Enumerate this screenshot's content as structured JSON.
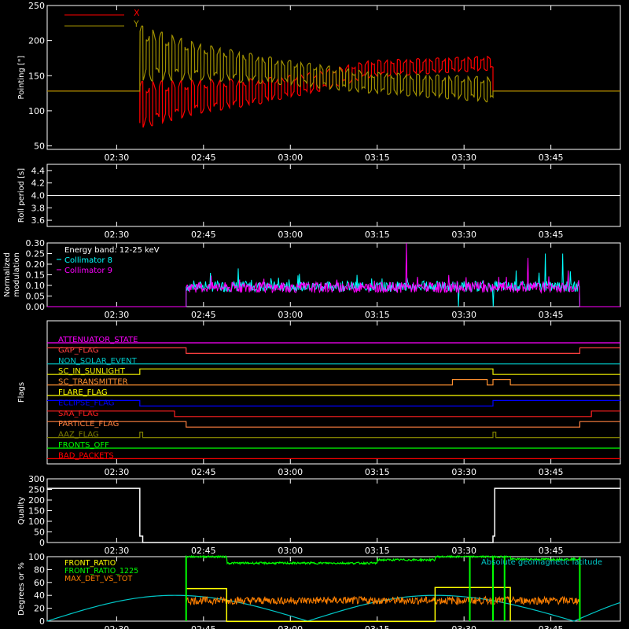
{
  "chart_data": [
    {
      "type": "line",
      "ylabel": "Pointing [\"]",
      "ylim": [
        45,
        250
      ],
      "yticks": [
        50,
        100,
        150,
        200,
        250
      ],
      "legend": "top-left",
      "series": [
        {
          "name": "X",
          "color": "#ff0000",
          "start": "02:34",
          "end": "03:35",
          "base": 128,
          "center": [
            [
              0,
              108
            ],
            [
              10,
              120
            ],
            [
              20,
              127
            ],
            [
              30,
              140
            ],
            [
              40,
              160
            ],
            [
              61,
              168
            ]
          ],
          "amp": [
            [
              0,
              34
            ],
            [
              10,
              24
            ],
            [
              25,
              16
            ],
            [
              40,
              12
            ],
            [
              61,
              10
            ]
          ]
        },
        {
          "name": "Y",
          "color": "#a09000",
          "start": "02:34",
          "end": "03:35",
          "base": 128,
          "center": [
            [
              0,
              182
            ],
            [
              10,
              170
            ],
            [
              20,
              160
            ],
            [
              30,
              150
            ],
            [
              40,
              140
            ],
            [
              61,
              130
            ]
          ],
          "amp": [
            [
              0,
              40
            ],
            [
              10,
              26
            ],
            [
              25,
              18
            ],
            [
              40,
              15
            ],
            [
              61,
              18
            ]
          ]
        }
      ]
    },
    {
      "type": "line",
      "ylabel": "Roll period [s]",
      "ylim": [
        3.5,
        4.5
      ],
      "yticks": [
        3.6,
        3.8,
        4.0,
        4.2,
        4.4
      ],
      "series": [
        {
          "name": "",
          "color": "#ffffff",
          "constant": 4.0
        }
      ]
    },
    {
      "type": "line",
      "ylabel": "Normalized modulation",
      "ylim": [
        0,
        0.3
      ],
      "yticks": [
        0.0,
        0.05,
        0.1,
        0.15,
        0.2,
        0.25,
        0.3
      ],
      "legend_title": "Energy band: 12-25 keV",
      "legend": "top-left",
      "series": [
        {
          "name": "Collimator 8",
          "color": "#00ffff",
          "start": "02:42",
          "end": "03:50",
          "level": 0.095,
          "dips": [
            "03:29",
            "03:35"
          ],
          "spikes": [
            [
              "03:39",
              0.17
            ],
            [
              "03:44",
              0.25
            ],
            [
              "03:47",
              0.25
            ],
            [
              "03:43",
              0.16
            ],
            [
              "02:51",
              0.18
            ]
          ]
        },
        {
          "name": "Collimator 9",
          "color": "#ff00ff",
          "start": "02:42",
          "end": "03:50",
          "level": 0.09,
          "spikes": [
            [
              "03:20",
              0.3
            ],
            [
              "03:22",
              0.14
            ],
            [
              "03:36",
              0.14
            ],
            [
              "03:41",
              0.23
            ],
            [
              "03:48",
              0.17
            ]
          ]
        }
      ]
    },
    {
      "type": "line",
      "ylabel": "Flags",
      "flags": [
        {
          "name": "ATTENUATOR_STATE",
          "color": "#ff00ff",
          "steps": [
            [
              "02:18",
              0
            ]
          ]
        },
        {
          "name": "GAP_FLAG",
          "color": "#ff4040",
          "steps": [
            [
              "02:18",
              1
            ],
            [
              "02:42",
              0
            ],
            [
              "03:50",
              1
            ]
          ]
        },
        {
          "name": "NON_SOLAR_EVENT",
          "color": "#00c8c8",
          "steps": [
            [
              "02:18",
              0
            ]
          ]
        },
        {
          "name": "SC_IN_SUNLIGHT",
          "color": "#f0f000",
          "steps": [
            [
              "02:18",
              0
            ],
            [
              "02:34",
              1
            ],
            [
              "03:35",
              0
            ]
          ]
        },
        {
          "name": "SC_TRANSMITTER",
          "color": "#ff9030",
          "steps": [
            [
              "02:18",
              0
            ],
            [
              "03:28",
              1
            ],
            [
              "03:34",
              0
            ],
            [
              "03:35",
              1
            ],
            [
              "03:38",
              0
            ]
          ]
        },
        {
          "name": "FLARE_FLAG",
          "color": "#ffff00",
          "steps": [
            [
              "02:18",
              0
            ]
          ]
        },
        {
          "name": "ECLIPSE_FLAG",
          "color": "#0000ff",
          "steps": [
            [
              "02:18",
              1
            ],
            [
              "02:34",
              0
            ],
            [
              "03:35",
              1
            ]
          ]
        },
        {
          "name": "SAA_FLAG",
          "color": "#ff2020",
          "steps": [
            [
              "02:18",
              1
            ],
            [
              "02:40",
              0
            ],
            [
              "03:52",
              1
            ]
          ]
        },
        {
          "name": "PARTICLE_FLAG",
          "color": "#ff8040",
          "steps": [
            [
              "02:18",
              1
            ],
            [
              "02:42",
              0
            ],
            [
              "03:50",
              1
            ]
          ]
        },
        {
          "name": "AAZ_FLAG",
          "color": "#808000",
          "steps": [
            [
              "02:18",
              0
            ],
            [
              "02:34",
              1
            ],
            [
              "02:34.5",
              0
            ],
            [
              "03:35",
              1
            ],
            [
              "03:35.5",
              0
            ]
          ]
        },
        {
          "name": "FRONTS_OFF",
          "color": "#00ff00",
          "steps": [
            [
              "02:18",
              0
            ]
          ]
        },
        {
          "name": "BAD_PACKETS",
          "color": "#ff0000",
          "steps": [
            [
              "02:18",
              0
            ]
          ]
        }
      ]
    },
    {
      "type": "line",
      "ylabel": "Quality",
      "ylim": [
        0,
        300
      ],
      "yticks": [
        0,
        50,
        100,
        150,
        200,
        250,
        300
      ],
      "series": [
        {
          "name": "",
          "color": "#ffffff",
          "steps": [
            [
              "02:18",
              255
            ],
            [
              "02:34",
              30
            ],
            [
              "02:34.5",
              0
            ],
            [
              "03:35",
              30
            ],
            [
              "03:35.3",
              255
            ]
          ]
        }
      ]
    },
    {
      "type": "line",
      "ylabel": "Degrees or %",
      "ylim": [
        0,
        100
      ],
      "yticks": [
        0,
        20,
        40,
        60,
        80,
        100
      ],
      "legend": "top-left",
      "annotation": "Absolute geomagnetic latitude",
      "series": [
        {
          "name": "FRONT_RATIO",
          "color": "#ffff00",
          "steps": [
            [
              "02:42",
              50
            ],
            [
              "02:49",
              0
            ],
            [
              "03:25",
              52
            ],
            [
              "03:38",
              0
            ]
          ],
          "end": "03:50"
        },
        {
          "name": "FRONT_RATIO_1225",
          "color": "#00ff00",
          "start": "02:42",
          "end": "03:50",
          "steps": [
            [
              "02:42",
              100
            ],
            [
              "02:49",
              90
            ],
            [
              "03:15",
              95
            ],
            [
              "03:25",
              100
            ],
            [
              "03:38",
              96
            ]
          ],
          "spikes": [
            "02:42",
            "03:31",
            "03:35",
            "03:37",
            "03:50"
          ]
        },
        {
          "name": "MAX_DET_VS_TOT",
          "color": "#ff8000",
          "start": "02:42",
          "end": "03:50",
          "level": 32
        },
        {
          "name": "Absolute geomagnetic latitude",
          "color": "#00c8c8",
          "minima": [
            "02:18",
            "03:03",
            "03:49"
          ],
          "maxima": [
            [
              "02:40",
              40
            ],
            [
              "03:25",
              40
            ]
          ]
        }
      ]
    }
  ],
  "x_axis": {
    "range": [
      "02:18",
      "03:57"
    ],
    "ticks": [
      "02:30",
      "02:45",
      "03:00",
      "03:15",
      "03:30",
      "03:45"
    ]
  }
}
